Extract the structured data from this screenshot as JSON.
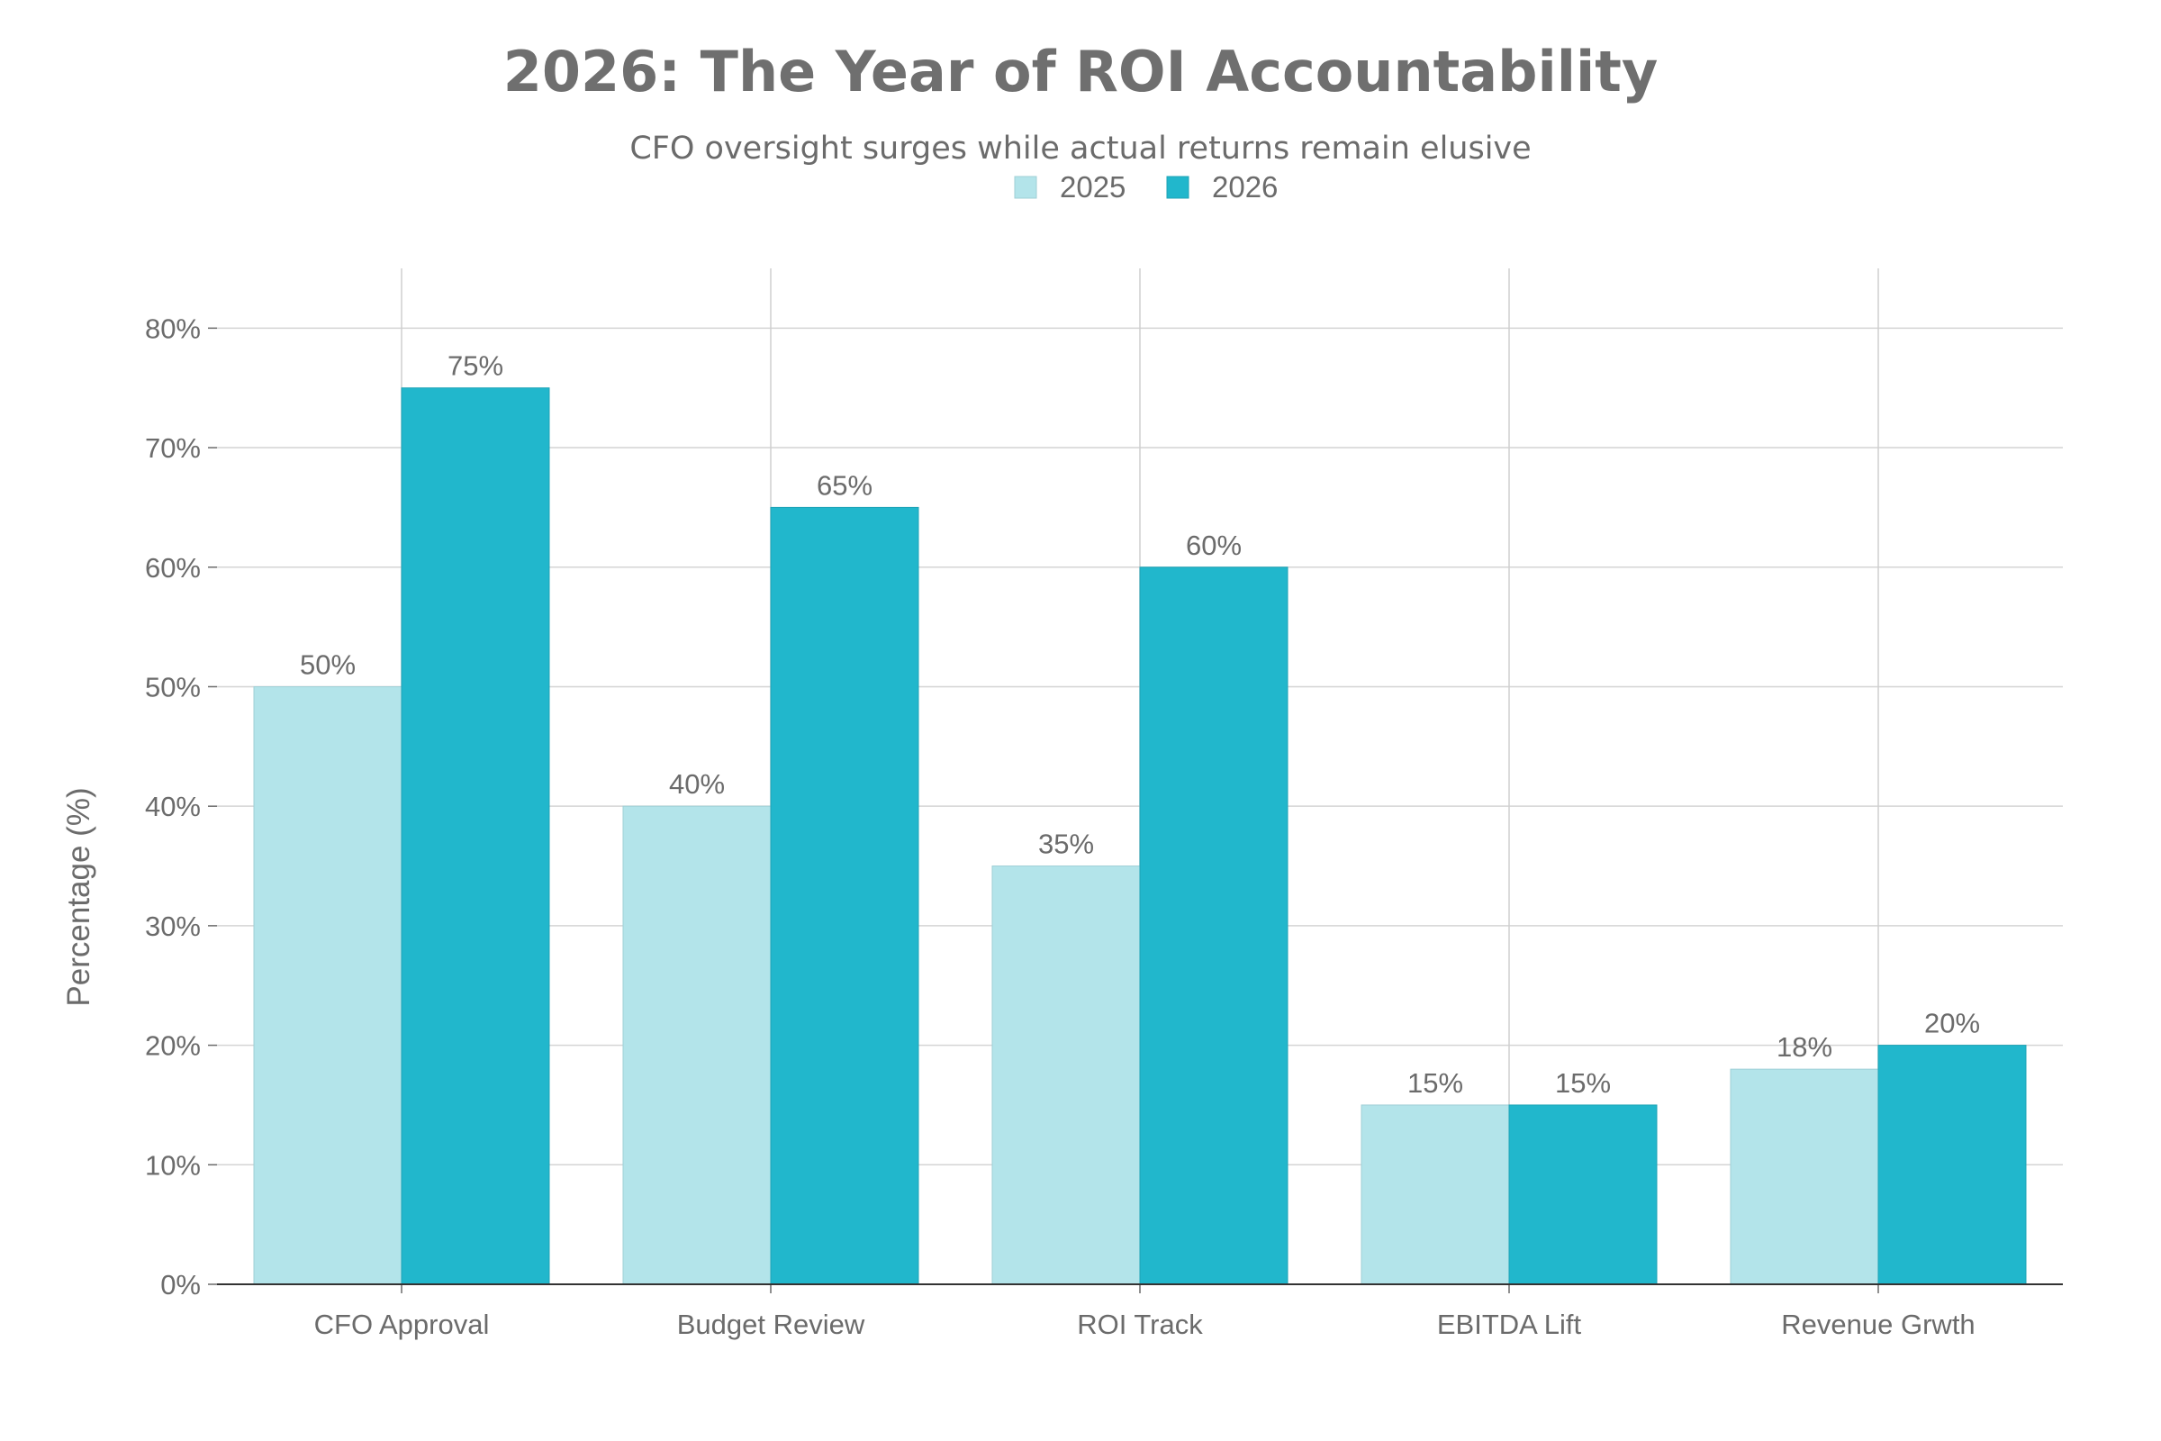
{
  "chart_data": {
    "type": "bar",
    "title": "2026: The Year of ROI Accountability",
    "subtitle": "CFO oversight surges while actual returns remain elusive",
    "xlabel": "",
    "ylabel": "Percentage (%)",
    "ylim": [
      0,
      85
    ],
    "yticks": [
      0,
      10,
      20,
      30,
      40,
      50,
      60,
      70,
      80
    ],
    "ytick_labels": [
      "0%",
      "10%",
      "20%",
      "30%",
      "40%",
      "50%",
      "60%",
      "70%",
      "80%"
    ],
    "grid": true,
    "legend_position": "top-center",
    "categories": [
      "CFO Approval",
      "Budget Review",
      "ROI Track",
      "EBITDA Lift",
      "Revenue Grwth"
    ],
    "series": [
      {
        "name": "2025",
        "color": "#b3e4ea",
        "values": [
          50,
          40,
          35,
          15,
          18
        ],
        "labels": [
          "50%",
          "40%",
          "35%",
          "15%",
          "18%"
        ]
      },
      {
        "name": "2026",
        "color": "#21b7cc",
        "values": [
          75,
          65,
          60,
          15,
          20
        ],
        "labels": [
          "75%",
          "65%",
          "60%",
          "15%",
          "20%"
        ]
      }
    ]
  }
}
